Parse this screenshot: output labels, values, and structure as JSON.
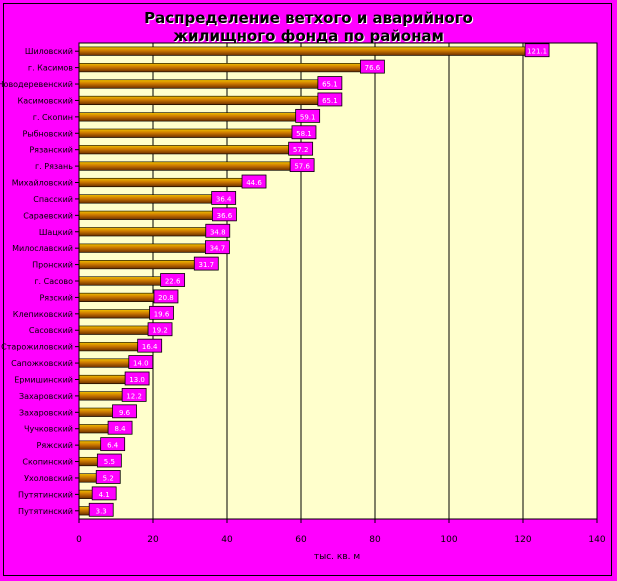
{
  "chart_data": {
    "type": "bar",
    "orientation": "horizontal",
    "title": "Распределение ветхого и аварийного\nжилищного фонда по районам",
    "xlabel": "тыс. кв. м",
    "ylabel": "",
    "xlim": [
      0,
      140
    ],
    "xticks": [
      "0",
      "20",
      "40",
      "60",
      "80",
      "100",
      "120",
      "140"
    ],
    "grid": true,
    "categories": [
      "Шиловский",
      "г. Касимов",
      "Новодеревенский",
      "Касимовский",
      "г. Скопин",
      "Рыбновский",
      "Рязанский",
      "г. Рязань",
      "Михайловский",
      "Спасский",
      "Сараевский",
      "Шацкий",
      "Милославский",
      "Пронский",
      "г. Сасово",
      "Рязский",
      "Клепиковский",
      "Сасовский",
      "Старожиловский",
      "Сапожковский",
      "Ермишинский",
      "Захаровский",
      "Захаровский",
      "Чучковский",
      "Ряжский",
      "Скопинский",
      "Ухоловский",
      "Путятинский",
      "Путятинский"
    ],
    "values": [
      121.1,
      76.6,
      65.1,
      65.1,
      59.1,
      58.1,
      57.2,
      57.6,
      44.6,
      36.4,
      36.6,
      34.8,
      34.7,
      31.7,
      22.6,
      20.8,
      19.6,
      19.2,
      16.4,
      14.0,
      13.0,
      12.2,
      9.6,
      8.4,
      6.4,
      5.5,
      5.2,
      4.1,
      3.3
    ],
    "data_labels": [
      "121.1",
      "76.6",
      "65.1",
      "65.1",
      "59.1",
      "58.1",
      "57.2",
      "57.6",
      "44.6",
      "36.4",
      "36.6",
      "34.8",
      "34.7",
      "31.7",
      "22.6",
      "20.8",
      "19.6",
      "19.2",
      "16.4",
      "14.0",
      "13.0",
      "12.2",
      "9.6",
      "8.4",
      "6.4",
      "5.5",
      "5.2",
      "4.1",
      "3.3"
    ],
    "colors": {
      "plot_background": "#ffffcc",
      "page_background": "#ff00ff",
      "bar_light": "#f0c000",
      "bar_mid": "#cc7700",
      "bar_dark": "#6b2e00",
      "label_box": "#ff00ff",
      "gridline": "#000000"
    }
  }
}
